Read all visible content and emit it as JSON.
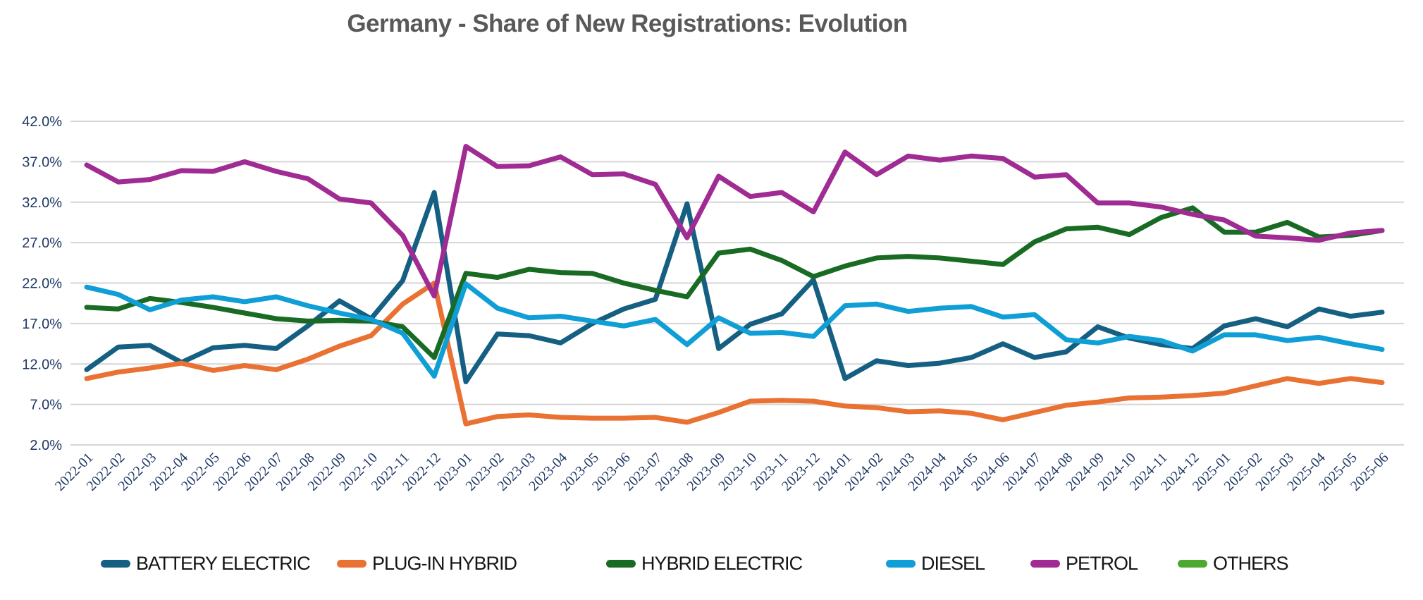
{
  "chart_data": {
    "type": "line",
    "title": "Germany - Share of New Registrations: Evolution",
    "xlabel": "",
    "ylabel": "",
    "ylim": [
      2,
      42
    ],
    "ytick_step": 5,
    "yticks": [
      "42.0%",
      "37.0%",
      "32.0%",
      "27.0%",
      "22.0%",
      "17.0%",
      "12.0%",
      "7.0%",
      "2.0%"
    ],
    "grid": true,
    "legend_position": "bottom",
    "x": [
      "2022-01",
      "2022-02",
      "2022-03",
      "2022-04",
      "2022-05",
      "2022-06",
      "2022-07",
      "2022-08",
      "2022-09",
      "2022-10",
      "2022-11",
      "2022-12",
      "2023-01",
      "2023-02",
      "2023-03",
      "2023-04",
      "2023-05",
      "2023-06",
      "2023-07",
      "2023-08",
      "2023-09",
      "2023-10",
      "2023-11",
      "2023-12",
      "2024-01",
      "2024-02",
      "2024-03",
      "2024-04",
      "2024-05",
      "2024-06",
      "2024-07",
      "2024-08",
      "2024-09",
      "2024-10",
      "2024-11",
      "2024-12",
      "2025-01",
      "2025-02",
      "2025-03",
      "2025-04",
      "2025-05",
      "2025-06"
    ],
    "series": [
      {
        "name": "BATTERY ELECTRIC",
        "color": "#156082",
        "values": [
          11.3,
          14.1,
          14.3,
          12.2,
          14.0,
          14.3,
          13.9,
          16.7,
          19.8,
          17.6,
          22.3,
          33.2,
          9.8,
          15.7,
          15.5,
          14.6,
          17.0,
          18.8,
          20.0,
          31.8,
          13.9,
          16.9,
          18.2,
          22.4,
          10.2,
          12.4,
          11.8,
          12.1,
          12.8,
          14.5,
          12.8,
          13.5,
          16.6,
          15.2,
          14.4,
          13.9,
          16.7,
          17.6,
          16.6,
          18.8,
          17.9,
          18.4
        ]
      },
      {
        "name": "PLUG-IN HYBRID",
        "color": "#E97132",
        "values": [
          10.2,
          11.0,
          11.5,
          12.1,
          11.2,
          11.8,
          11.3,
          12.6,
          14.2,
          15.5,
          19.4,
          22.0,
          4.6,
          5.5,
          5.7,
          5.4,
          5.3,
          5.3,
          5.4,
          4.8,
          6.0,
          7.4,
          7.5,
          7.4,
          6.8,
          6.6,
          6.1,
          6.2,
          5.9,
          5.1,
          6.0,
          6.9,
          7.3,
          7.8,
          7.9,
          8.1,
          8.4,
          9.3,
          10.2,
          9.6,
          10.2,
          9.7
        ]
      },
      {
        "name": "HYBRID ELECTRIC",
        "color": "#196B24",
        "values": [
          19.0,
          18.8,
          20.1,
          19.6,
          19.0,
          18.3,
          17.6,
          17.3,
          17.4,
          17.3,
          16.6,
          12.8,
          23.2,
          22.7,
          23.7,
          23.3,
          23.2,
          22.0,
          21.1,
          20.3,
          25.7,
          26.2,
          24.8,
          22.8,
          24.1,
          25.1,
          25.3,
          25.1,
          24.7,
          24.3,
          27.1,
          28.7,
          28.9,
          28.0,
          30.1,
          31.3,
          28.3,
          28.3,
          29.5,
          27.7,
          27.9,
          28.5
        ]
      },
      {
        "name": "DIESEL",
        "color": "#0F9ED5",
        "values": [
          21.5,
          20.6,
          18.7,
          19.9,
          20.3,
          19.7,
          20.3,
          19.2,
          18.3,
          17.5,
          15.8,
          10.5,
          21.9,
          18.9,
          17.7,
          17.9,
          17.3,
          16.7,
          17.5,
          14.4,
          17.7,
          15.8,
          15.9,
          15.4,
          19.2,
          19.4,
          18.5,
          18.9,
          19.1,
          17.8,
          18.1,
          15.0,
          14.6,
          15.4,
          14.9,
          13.6,
          15.6,
          15.6,
          14.9,
          15.3,
          14.5,
          13.8
        ]
      },
      {
        "name": "PETROL",
        "color": "#A02B93",
        "values": [
          36.6,
          34.5,
          34.8,
          35.9,
          35.8,
          37.0,
          35.8,
          34.9,
          32.4,
          31.9,
          27.9,
          20.4,
          38.9,
          36.4,
          36.5,
          37.6,
          35.4,
          35.5,
          34.2,
          27.6,
          35.2,
          32.7,
          33.2,
          30.8,
          38.2,
          35.4,
          37.7,
          37.2,
          37.7,
          37.4,
          35.1,
          35.4,
          31.9,
          31.9,
          31.4,
          30.5,
          29.8,
          27.8,
          27.6,
          27.3,
          28.2,
          28.5
        ]
      },
      {
        "name": "OTHERS",
        "color": "#4EA72E",
        "values": []
      }
    ]
  },
  "style": {
    "title_color": "#595959",
    "axis_label_color": "#1F3864",
    "gridline_color": "#D6D6D6",
    "background": "#FFFFFF"
  }
}
